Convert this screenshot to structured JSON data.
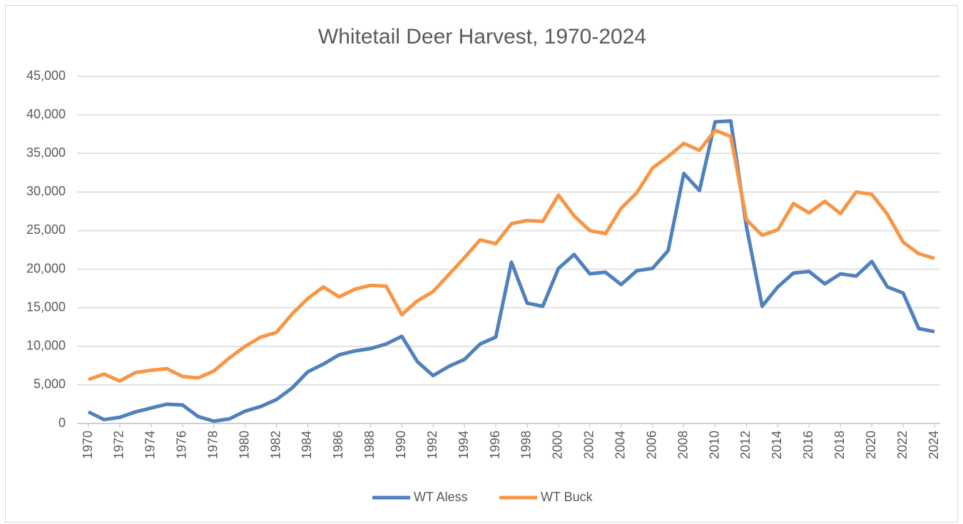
{
  "chart_data": {
    "type": "line",
    "title": "Whitetail Deer Harvest, 1970-2024",
    "x": [
      1970,
      1971,
      1972,
      1973,
      1974,
      1975,
      1976,
      1977,
      1978,
      1979,
      1980,
      1981,
      1982,
      1983,
      1984,
      1985,
      1986,
      1987,
      1988,
      1989,
      1990,
      1991,
      1992,
      1993,
      1994,
      1995,
      1996,
      1997,
      1998,
      1999,
      2000,
      2001,
      2002,
      2003,
      2004,
      2005,
      2006,
      2007,
      2008,
      2009,
      2010,
      2011,
      2012,
      2013,
      2014,
      2015,
      2016,
      2017,
      2018,
      2019,
      2020,
      2021,
      2022,
      2023,
      2024
    ],
    "xlim": [
      1970,
      2024
    ],
    "xticks": [
      1970,
      1972,
      1974,
      1976,
      1978,
      1980,
      1982,
      1984,
      1986,
      1988,
      1990,
      1992,
      1994,
      1996,
      1998,
      2000,
      2002,
      2004,
      2006,
      2008,
      2010,
      2012,
      2014,
      2016,
      2018,
      2020,
      2022,
      2024
    ],
    "series": [
      {
        "name": "WT Aless",
        "color": "#4f81bd",
        "values": [
          1500,
          500,
          800,
          1500,
          2000,
          2500,
          2400,
          900,
          300,
          600,
          1600,
          2200,
          3100,
          4600,
          6700,
          7700,
          8900,
          9400,
          9700,
          10300,
          11300,
          8000,
          6200,
          7400,
          8300,
          10300,
          11200,
          20900,
          15600,
          15200,
          20100,
          21900,
          19400,
          19600,
          18000,
          19800,
          20100,
          22400,
          32400,
          30200,
          39100,
          39200,
          25500,
          15200,
          17700,
          19500,
          19700,
          18100,
          19400,
          19100,
          21000,
          17700,
          16900,
          12300,
          11900
        ]
      },
      {
        "name": "WT Buck",
        "color": "#f79646",
        "values": [
          5700,
          6400,
          5500,
          6600,
          6900,
          7100,
          6100,
          5900,
          6800,
          8500,
          10000,
          11200,
          11800,
          14200,
          16200,
          17700,
          16400,
          17400,
          17900,
          17800,
          14100,
          15900,
          17100,
          19300,
          21500,
          23800,
          23300,
          25900,
          26300,
          26200,
          29600,
          26900,
          25000,
          24600,
          27900,
          29900,
          33100,
          34600,
          36300,
          35400,
          38000,
          37200,
          26400,
          24400,
          25100,
          28500,
          27300,
          28800,
          27200,
          30000,
          29700,
          27100,
          23500,
          22000,
          21400
        ]
      }
    ],
    "ylim": [
      0,
      45000
    ],
    "yticks": [
      0,
      {
        "value": 5000,
        "label": "5,000"
      },
      {
        "value": 10000,
        "label": "10,000"
      },
      {
        "value": 15000,
        "label": "15,000"
      },
      {
        "value": 20000,
        "label": "20,000"
      },
      {
        "value": 25000,
        "label": "25,000"
      },
      {
        "value": 30000,
        "label": "30,000"
      },
      {
        "value": 35000,
        "label": "35,000"
      },
      {
        "value": 40000,
        "label": "40,000"
      },
      {
        "value": 45000,
        "label": "45,000"
      }
    ],
    "grid": true,
    "legend": "bottom"
  }
}
